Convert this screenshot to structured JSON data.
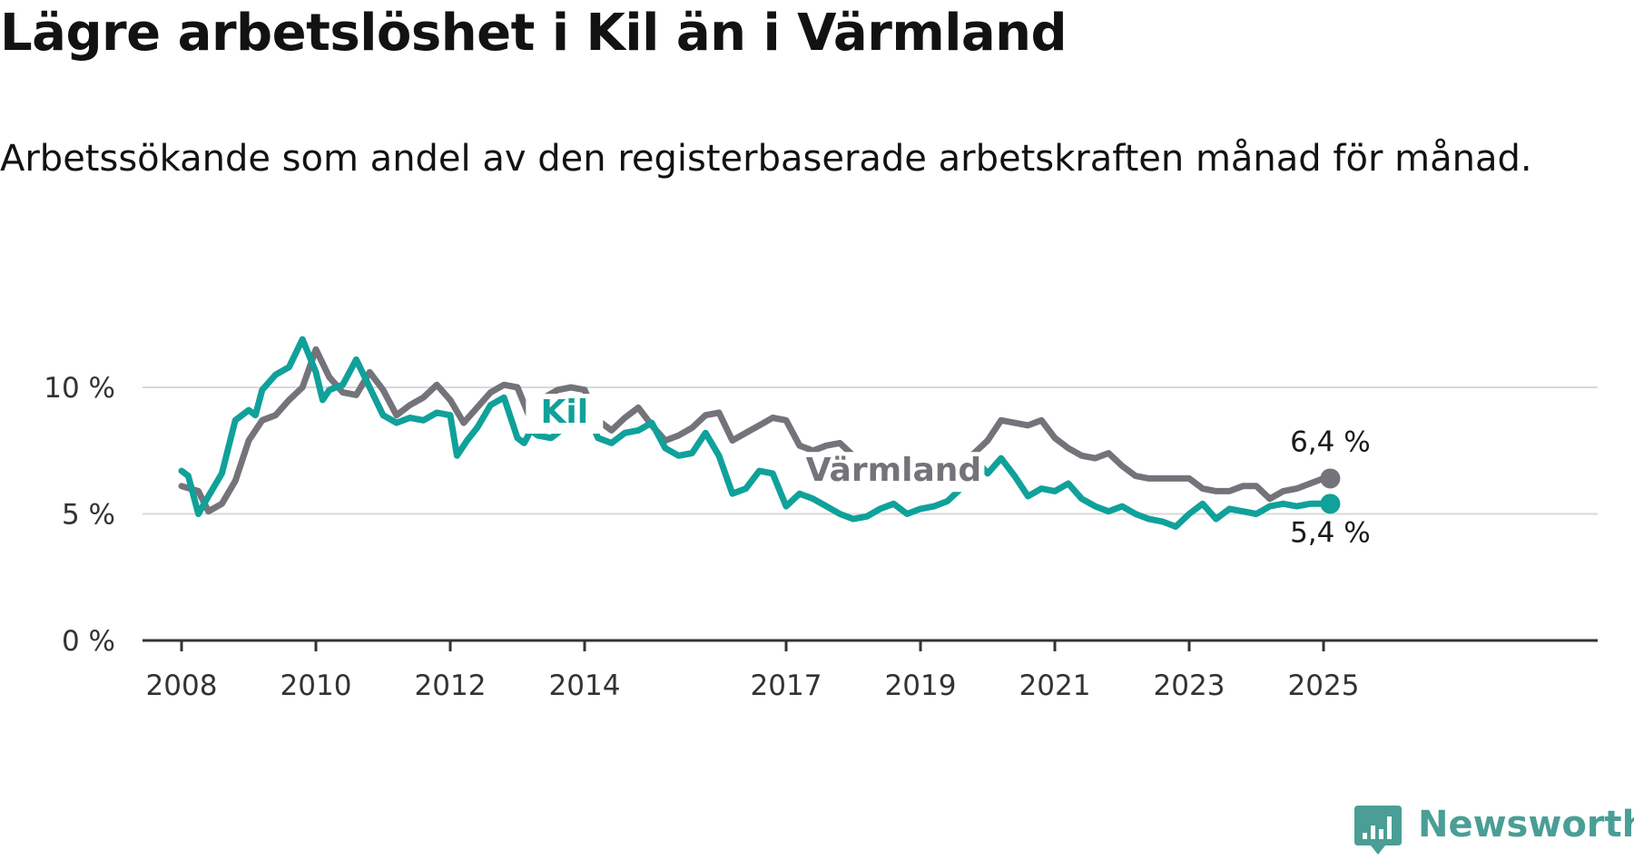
{
  "title": "Lägre arbetslöshet i Kil än i Värmland",
  "subtitle": "Arbetssökande som andel av den registerbaserade arbetskraften månad för månad.",
  "brand": {
    "name": "Newsworthy",
    "color": "#4a9e96",
    "icon": "newsworthy-logo-icon"
  },
  "chart_data": {
    "type": "line",
    "title": "Lägre arbetslöshet i Kil än i Värmland",
    "ylim": [
      0,
      12
    ],
    "xlim": [
      2008.0,
      2026.0
    ],
    "y_ticks": [
      {
        "value": 0,
        "label": "0 %"
      },
      {
        "value": 5,
        "label": "5 %"
      },
      {
        "value": 10,
        "label": "10 %"
      }
    ],
    "x_ticks": [
      {
        "value": 2008,
        "label": "2008"
      },
      {
        "value": 2010,
        "label": "2010"
      },
      {
        "value": 2012,
        "label": "2012"
      },
      {
        "value": 2014,
        "label": "2014"
      },
      {
        "value": 2017,
        "label": "2017"
      },
      {
        "value": 2019,
        "label": "2019"
      },
      {
        "value": 2021,
        "label": "2021"
      },
      {
        "value": 2023,
        "label": "2023"
      },
      {
        "value": 2025,
        "label": "2025"
      }
    ],
    "grid": true,
    "series": [
      {
        "name": "Värmland",
        "color": "#75737a",
        "end_label": "6,4 %",
        "x": [
          2008.0,
          2008.25,
          2008.4,
          2008.6,
          2008.8,
          2009.0,
          2009.2,
          2009.4,
          2009.6,
          2009.8,
          2010.0,
          2010.2,
          2010.4,
          2010.6,
          2010.8,
          2011.0,
          2011.2,
          2011.4,
          2011.6,
          2011.8,
          2012.0,
          2012.2,
          2012.4,
          2012.6,
          2012.8,
          2013.0,
          2013.2,
          2013.4,
          2013.6,
          2013.8,
          2014.0,
          2014.2,
          2014.4,
          2014.6,
          2014.8,
          2015.0,
          2015.2,
          2015.4,
          2015.6,
          2015.8,
          2016.0,
          2016.2,
          2016.4,
          2016.6,
          2016.8,
          2017.0,
          2017.2,
          2017.4,
          2017.6,
          2017.8,
          2018.0,
          2018.2,
          2018.4,
          2018.6,
          2018.8,
          2019.0,
          2019.2,
          2019.4,
          2019.6,
          2019.8,
          2020.0,
          2020.2,
          2020.4,
          2020.6,
          2020.8,
          2021.0,
          2021.2,
          2021.4,
          2021.6,
          2021.8,
          2022.0,
          2022.2,
          2022.4,
          2022.6,
          2022.8,
          2023.0,
          2023.2,
          2023.4,
          2023.6,
          2023.8,
          2024.0,
          2024.2,
          2024.4,
          2024.6,
          2024.8,
          2025.0,
          2025.1
        ],
        "values": [
          6.1,
          5.9,
          5.1,
          5.4,
          6.3,
          7.9,
          8.7,
          8.9,
          9.5,
          10.0,
          11.5,
          10.4,
          9.8,
          9.7,
          10.6,
          9.9,
          8.9,
          9.3,
          9.6,
          10.1,
          9.5,
          8.6,
          9.2,
          9.8,
          10.1,
          10.0,
          8.7,
          9.6,
          9.9,
          10.0,
          9.9,
          8.7,
          8.3,
          8.8,
          9.2,
          8.5,
          7.9,
          8.1,
          8.4,
          8.9,
          9.0,
          7.9,
          8.2,
          8.5,
          8.8,
          8.7,
          7.7,
          7.5,
          7.7,
          7.8,
          7.3,
          6.7,
          6.6,
          6.8,
          6.9,
          6.9,
          7.1,
          7.0,
          7.0,
          7.4,
          7.9,
          8.7,
          8.6,
          8.5,
          8.7,
          8.0,
          7.6,
          7.3,
          7.2,
          7.4,
          6.9,
          6.5,
          6.4,
          6.4,
          6.4,
          6.4,
          6.0,
          5.9,
          5.9,
          6.1,
          6.1,
          5.6,
          5.9,
          6.0,
          6.2,
          6.4,
          6.4
        ]
      },
      {
        "name": "Kil",
        "color": "#0fa19a",
        "end_label": "5,4 %",
        "x": [
          2008.0,
          2008.1,
          2008.25,
          2008.4,
          2008.6,
          2008.8,
          2009.0,
          2009.1,
          2009.2,
          2009.4,
          2009.6,
          2009.8,
          2010.0,
          2010.1,
          2010.2,
          2010.4,
          2010.6,
          2010.8,
          2011.0,
          2011.2,
          2011.4,
          2011.6,
          2011.8,
          2012.0,
          2012.1,
          2012.25,
          2012.4,
          2012.6,
          2012.8,
          2013.0,
          2013.1,
          2013.2,
          2013.3,
          2013.5,
          2013.6,
          2014.0,
          2014.2,
          2014.4,
          2014.6,
          2014.8,
          2015.0,
          2015.2,
          2015.4,
          2015.6,
          2015.8,
          2016.0,
          2016.2,
          2016.4,
          2016.6,
          2016.8,
          2017.0,
          2017.2,
          2017.4,
          2017.6,
          2017.8,
          2018.0,
          2018.2,
          2018.4,
          2018.6,
          2018.8,
          2019.0,
          2019.2,
          2019.4,
          2019.6,
          2019.8,
          2020.0,
          2020.2,
          2020.4,
          2020.6,
          2020.8,
          2021.0,
          2021.2,
          2021.4,
          2021.6,
          2021.8,
          2022.0,
          2022.2,
          2022.4,
          2022.6,
          2022.8,
          2023.0,
          2023.2,
          2023.4,
          2023.6,
          2023.8,
          2024.0,
          2024.2,
          2024.4,
          2024.6,
          2024.8,
          2025.0,
          2025.1
        ],
        "values": [
          6.7,
          6.5,
          5.0,
          5.7,
          6.6,
          8.7,
          9.1,
          8.9,
          9.9,
          10.5,
          10.8,
          11.9,
          10.6,
          9.5,
          9.9,
          10.1,
          11.1,
          10.0,
          8.9,
          8.6,
          8.8,
          8.7,
          9.0,
          8.9,
          7.3,
          7.9,
          8.4,
          9.3,
          9.6,
          8.0,
          7.8,
          8.3,
          8.1,
          8.0,
          8.2,
          9.2,
          8.0,
          7.8,
          8.2,
          8.3,
          8.6,
          7.6,
          7.3,
          7.4,
          8.2,
          7.3,
          5.8,
          6.0,
          6.7,
          6.6,
          5.3,
          5.8,
          5.6,
          5.3,
          5.0,
          4.8,
          4.9,
          5.2,
          5.4,
          5.0,
          5.2,
          5.3,
          5.5,
          6.0,
          7.2,
          6.6,
          7.2,
          6.5,
          5.7,
          6.0,
          5.9,
          6.2,
          5.6,
          5.3,
          5.1,
          5.3,
          5.0,
          4.8,
          4.7,
          4.5,
          5.0,
          5.4,
          4.8,
          5.2,
          5.1,
          5.0,
          5.3,
          5.4,
          5.3,
          5.4,
          5.4,
          5.4
        ]
      }
    ],
    "annotations": [
      {
        "text": "Kil",
        "series": "Kil"
      },
      {
        "text": "Värmland",
        "series": "Värmland"
      }
    ]
  }
}
